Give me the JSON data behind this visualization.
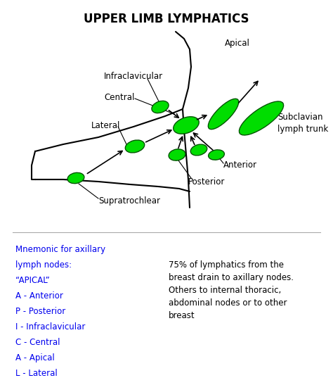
{
  "title": "UPPER LIMB LYMPHATICS",
  "title_fontsize": 12,
  "title_fontweight": "bold",
  "bg_color": "#ffffff",
  "node_color": "#00dd00",
  "node_edge_color": "#005500",
  "line_color": "#000000",
  "blue_color": "#0000ee",
  "black_color": "#000000",
  "mnemonic_lines": [
    "Mnemonic for axillary",
    "lymph nodes:",
    "“APICAL”",
    "A - Anterior",
    "P - Posterior",
    "I - Infraclavicular",
    "C - Central",
    "A - Apical",
    "L - Lateral"
  ],
  "info_text": "75% of lymphatics from the\nbreast drain to axillary nodes.\nOthers to internal thoracic,\nabdominal nodes or to other\nbreast",
  "figw": 4.74,
  "figh": 5.47,
  "dpi": 100
}
